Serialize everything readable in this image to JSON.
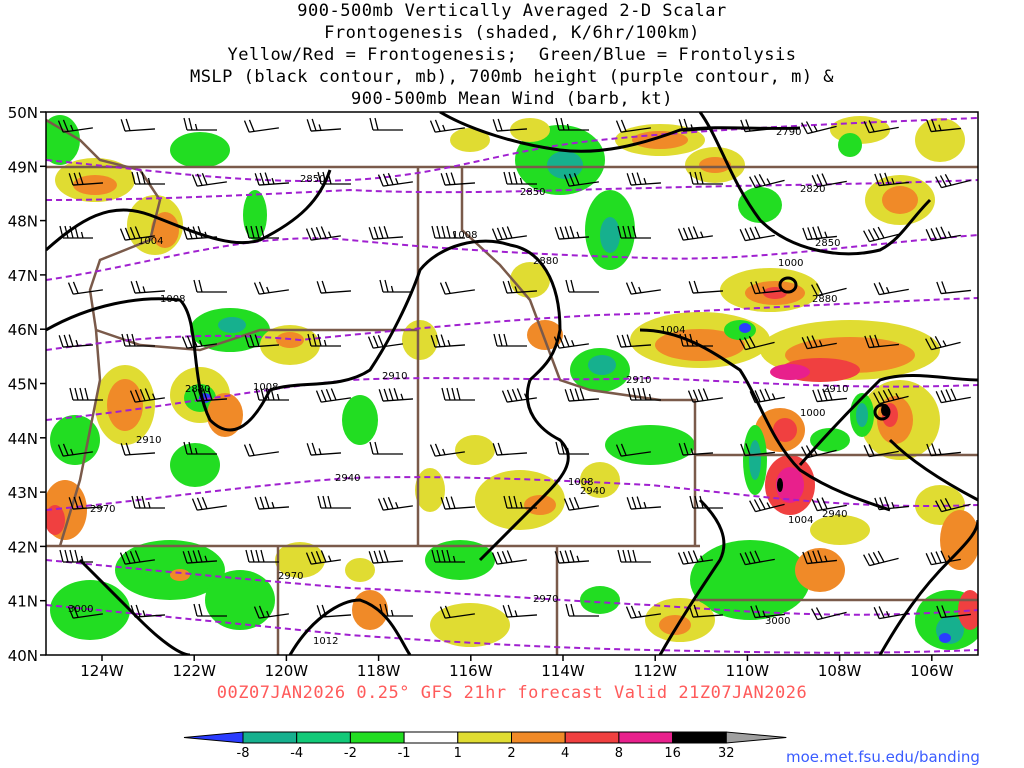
{
  "title_lines": [
    "900-500mb Vertically Averaged 2-D Scalar",
    "Frontogenesis (shaded, K/6hr/100km)",
    "Yellow/Red = Frontogenesis;  Green/Blue = Frontolysis",
    "MSLP (black contour, mb), 700mb height (purple contour, m) &",
    "900-500mb Mean Wind (barb, kt)"
  ],
  "lat_labels": [
    "50N",
    "49N",
    "48N",
    "47N",
    "46N",
    "45N",
    "44N",
    "43N",
    "42N",
    "41N",
    "40N"
  ],
  "lon_labels": [
    "124W",
    "122W",
    "120W",
    "118W",
    "116W",
    "114W",
    "112W",
    "110W",
    "108W",
    "106W"
  ],
  "footer": "00Z07JAN2026 0.25° GFS 21hr forecast Valid 21Z07JAN2026",
  "colorbar": {
    "labels": [
      "-8",
      "-4",
      "-2",
      "-1",
      "1",
      "2",
      "4",
      "8",
      "16",
      "32"
    ],
    "colors": [
      "#2a3cff",
      "#16b08e",
      "#12c978",
      "#22dd22",
      "#ffffff",
      "#e0dc32",
      "#f08a28",
      "#f04040",
      "#e8208c",
      "#000000",
      "#a0a0a0"
    ]
  },
  "contour_labels": {
    "mslp": [
      "1004",
      "1008",
      "1008",
      "1008",
      "1004",
      "1000",
      "1000",
      "1008",
      "1004",
      "1012"
    ],
    "height": [
      "2850",
      "2850",
      "2790",
      "2820",
      "2880",
      "2850",
      "2880",
      "2880",
      "2910",
      "2910",
      "2910",
      "2910",
      "2940",
      "2940",
      "2940",
      "2970",
      "2970",
      "2970",
      "3000"
    ]
  },
  "credit": "moe.met.fsu.edu/banding"
}
